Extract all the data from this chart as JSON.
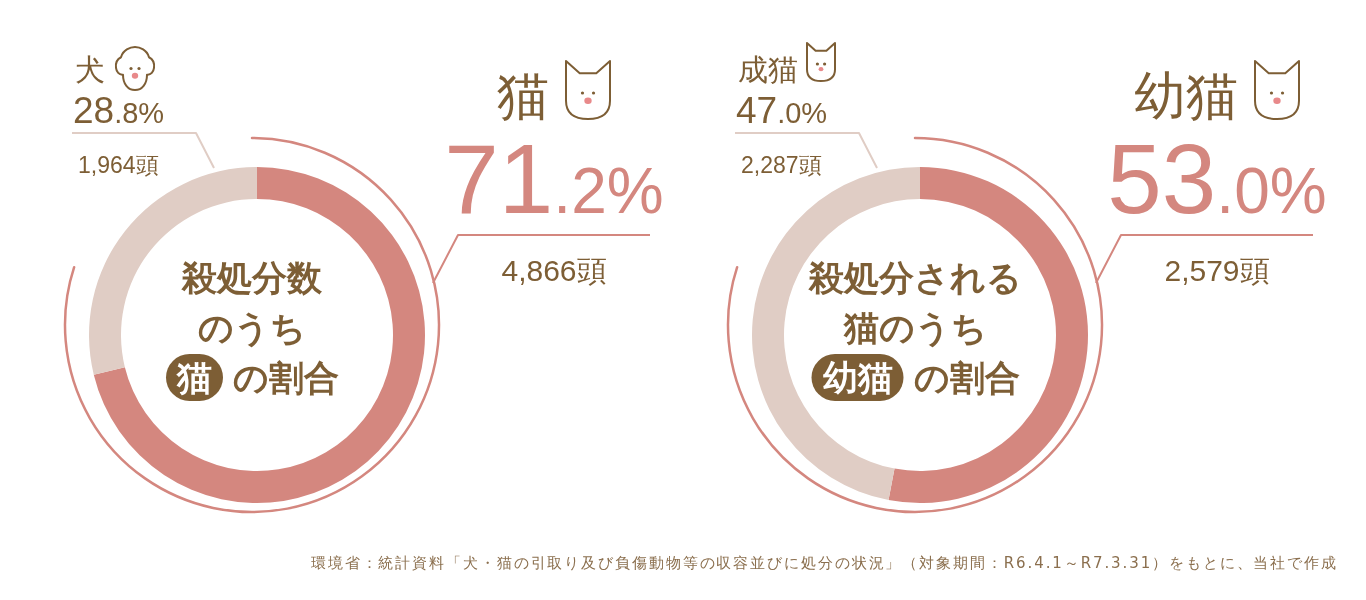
{
  "chart_data": [
    {
      "type": "donut",
      "title": "殺処分数のうち猫の割合",
      "categories": [
        "猫",
        "犬"
      ],
      "values": [
        71.2,
        28.8
      ],
      "colors": [
        "#d4877f",
        "#e0cdc5"
      ],
      "value_labels": [
        "71.2%",
        "28.8%"
      ],
      "annotations": [
        {
          "text": "4,866頭",
          "x": "猫"
        },
        {
          "text": "1,964頭",
          "x": "犬"
        }
      ]
    },
    {
      "type": "donut",
      "title": "殺処分される猫のうち幼猫の割合",
      "categories": [
        "幼猫",
        "成猫"
      ],
      "values": [
        53.0,
        47.0
      ],
      "colors": [
        "#d4877f",
        "#e0cdc5"
      ],
      "value_labels": [
        "53.0%",
        "47.0%"
      ],
      "annotations": [
        {
          "text": "2,579頭",
          "x": "幼猫"
        },
        {
          "text": "2,287頭",
          "x": "成猫"
        },
        "環境省：統計資料「犬・猫の引取り及び負傷動物等の収容並びに処分の状況」（対象期間：R6.4.1～R7.3.31）をもとに、当社で作成"
      ]
    }
  ]
}
